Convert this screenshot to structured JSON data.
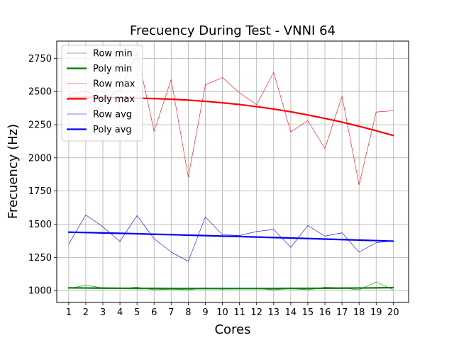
{
  "chart_data": {
    "type": "line",
    "title": "Frecuency During Test - VNNI 64",
    "xlabel": "Cores",
    "ylabel": "Frecuency (Hz)",
    "x": [
      1,
      2,
      3,
      4,
      5,
      6,
      7,
      8,
      9,
      10,
      11,
      12,
      13,
      14,
      15,
      16,
      17,
      18,
      19,
      20
    ],
    "xlim": [
      0.3,
      20.9
    ],
    "ylim": [
      910,
      2880
    ],
    "yticks": [
      1000,
      1250,
      1500,
      1750,
      2000,
      2250,
      2500,
      2750
    ],
    "xticks": [
      "1",
      "2",
      "3",
      "4",
      "5",
      "6",
      "7",
      "8",
      "9",
      "10",
      "11",
      "12",
      "13",
      "14",
      "15",
      "16",
      "17",
      "18",
      "19",
      "20"
    ],
    "grid": true,
    "legend": "top-left",
    "series": [
      {
        "name": "Row min",
        "color": "#008000",
        "width": 0.6,
        "values": [
          1015,
          1040,
          1020,
          1015,
          1025,
          1005,
          1010,
          1005,
          1020,
          1010,
          1015,
          1015,
          1005,
          1015,
          1005,
          1025,
          1020,
          1005,
          1065,
          1005
        ]
      },
      {
        "name": "Poly min",
        "color": "#008000",
        "width": 2.2,
        "values": [
          1020,
          1019,
          1018,
          1017,
          1016,
          1016,
          1015,
          1015,
          1015,
          1015,
          1015,
          1015,
          1015,
          1016,
          1016,
          1017,
          1018,
          1019,
          1020,
          1022
        ]
      },
      {
        "name": "Row max",
        "color": "#ff0000",
        "width": 0.6,
        "values": [
          2475,
          2505,
          2435,
          2510,
          2795,
          2200,
          2590,
          1855,
          2550,
          2605,
          2490,
          2400,
          2645,
          2195,
          2280,
          2070,
          2465,
          1795,
          2345,
          2355
        ]
      },
      {
        "name": "Poly max",
        "color": "#ff0000",
        "width": 2.2,
        "values": [
          2455,
          2455,
          2454,
          2452,
          2450,
          2447,
          2442,
          2435,
          2426,
          2415,
          2402,
          2386,
          2368,
          2347,
          2323,
          2297,
          2269,
          2238,
          2204,
          2168
        ]
      },
      {
        "name": "Row avg",
        "color": "#0000ff",
        "width": 0.6,
        "values": [
          1350,
          1570,
          1480,
          1370,
          1565,
          1390,
          1290,
          1220,
          1555,
          1420,
          1415,
          1445,
          1460,
          1325,
          1490,
          1410,
          1435,
          1290,
          1360,
          1375
        ]
      },
      {
        "name": "Poly avg",
        "color": "#0000ff",
        "width": 2.2,
        "values": [
          1440,
          1437,
          1434,
          1431,
          1428,
          1424,
          1421,
          1417,
          1414,
          1410,
          1407,
          1403,
          1399,
          1396,
          1392,
          1388,
          1384,
          1380,
          1376,
          1372
        ]
      }
    ]
  }
}
